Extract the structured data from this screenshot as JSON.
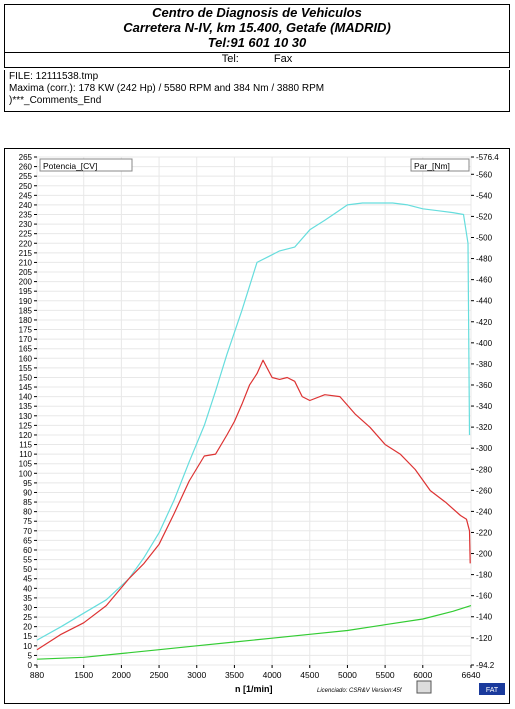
{
  "header": {
    "line1": "Centro de Diagnosis de Vehiculos",
    "line2": "Carretera N-IV, km 15.400, Getafe (MADRID)",
    "line3": "Tel:91 601 10 30",
    "tel_label": "Tel:",
    "fax_label": "Fax"
  },
  "info": {
    "file": "FILE: 12111538.tmp",
    "maxima": "Maxima (corr.):  178 KW (242 Hp) /  5580 RPM   and   384 Nm /  3880 RPM",
    "comments": ")***_Comments_End"
  },
  "footer": {
    "licence": "Licenciado: CSR&V  Version:45f",
    "logo": "FAT"
  },
  "chart_data": {
    "type": "line",
    "xlabel": "n  [1/min]",
    "ylabel_left": "Potencia_[CV]",
    "ylabel_right": "Par_[Nm]",
    "xlim": [
      880,
      6640
    ],
    "ylim_left": [
      0,
      265
    ],
    "ylim_right": [
      94.2,
      576.4
    ],
    "x_ticks": [
      "880",
      "1500",
      "2000",
      "2500",
      "3000",
      "3500",
      "4000",
      "4500",
      "5000",
      "5500",
      "6000",
      "6640"
    ],
    "y_left_ticks": [
      "0",
      "5",
      "10",
      "15",
      "20",
      "25",
      "30",
      "35",
      "40",
      "45",
      "50",
      "55",
      "60",
      "65",
      "70",
      "75",
      "80",
      "85",
      "90",
      "95",
      "100",
      "105",
      "110",
      "115",
      "120",
      "125",
      "130",
      "135",
      "140",
      "145",
      "150",
      "155",
      "160",
      "165",
      "170",
      "175",
      "180",
      "185",
      "190",
      "195",
      "200",
      "205",
      "210",
      "215",
      "220",
      "225",
      "230",
      "235",
      "240",
      "245",
      "250",
      "255",
      "260",
      "265"
    ],
    "y_right_ticks": [
      "576.4",
      "560",
      "540",
      "520",
      "500",
      "480",
      "460",
      "440",
      "420",
      "400",
      "380",
      "360",
      "340",
      "320",
      "300",
      "280",
      "260",
      "240",
      "220",
      "200",
      "180",
      "160",
      "140",
      "120",
      "94.2"
    ],
    "colors": {
      "potencia": "#66dddd",
      "par": "#dd3333",
      "perdidas": "#33cc33"
    },
    "series": [
      {
        "axis": "left",
        "color": "#66dddd",
        "x": [
          880,
          1200,
          1500,
          1800,
          2100,
          2300,
          2500,
          2700,
          2900,
          3100,
          3250,
          3400,
          3600,
          3800,
          3950,
          4100,
          4300,
          4500,
          4700,
          4850,
          5000,
          5200,
          5400,
          5600,
          5800,
          6000,
          6200,
          6400,
          6540,
          6600,
          6620
        ],
        "y": [
          13,
          20,
          27,
          34,
          45,
          56,
          69,
          86,
          106,
          125,
          143,
          162,
          185,
          210,
          213,
          216,
          218,
          227,
          232,
          236,
          240,
          241,
          241,
          241,
          240,
          238,
          237,
          236,
          235,
          220,
          120
        ]
      },
      {
        "axis": "left",
        "color": "#dd3333",
        "x": [
          880,
          1200,
          1500,
          1800,
          2100,
          2300,
          2500,
          2700,
          2900,
          3100,
          3250,
          3400,
          3500,
          3600,
          3700,
          3800,
          3880,
          4000,
          4100,
          4200,
          4300,
          4400,
          4500,
          4700,
          4900,
          5100,
          5300,
          5500,
          5700,
          5900,
          6100,
          6300,
          6500,
          6580,
          6620,
          6630
        ],
        "y": [
          8,
          16,
          22,
          31,
          45,
          53,
          63,
          79,
          96,
          109,
          110,
          120,
          127,
          136,
          146,
          152,
          159,
          150,
          149,
          150,
          148,
          140,
          138,
          141,
          140,
          131,
          124,
          115,
          110,
          102,
          91,
          85,
          78,
          76,
          70,
          53
        ]
      },
      {
        "axis": "left",
        "color": "#33cc33",
        "x": [
          880,
          1500,
          2000,
          2500,
          3000,
          3500,
          4000,
          4500,
          5000,
          5500,
          6000,
          6400,
          6640
        ],
        "y": [
          3,
          4,
          6,
          8,
          10,
          12,
          14,
          16,
          18,
          21,
          24,
          28,
          31
        ]
      }
    ]
  }
}
